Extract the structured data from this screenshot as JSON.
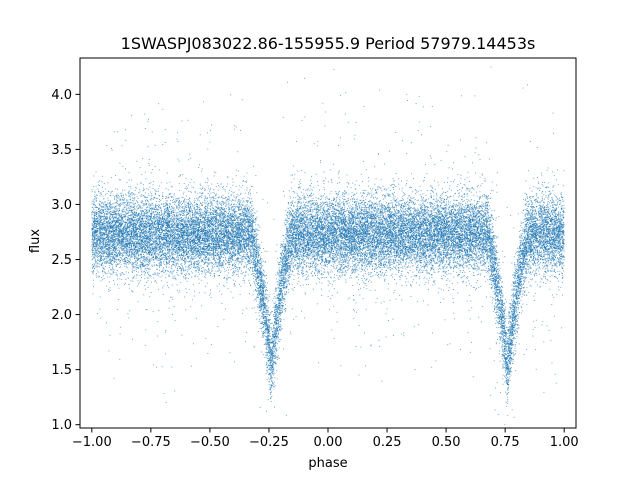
{
  "chart_data": {
    "type": "scatter",
    "title": "1SWASPJ083022.86-155955.9 Period 57979.14453s",
    "xlabel": "phase",
    "ylabel": "flux",
    "xlim": [
      -1.05,
      1.05
    ],
    "ylim": [
      0.97,
      4.33
    ],
    "xticks": [
      -1.0,
      -0.75,
      -0.5,
      -0.25,
      0.0,
      0.25,
      0.5,
      0.75,
      1.0
    ],
    "xtick_labels": [
      "−1.00",
      "−0.75",
      "−0.50",
      "−0.25",
      "0.00",
      "0.25",
      "0.50",
      "0.75",
      "1.00"
    ],
    "yticks": [
      1.0,
      1.5,
      2.0,
      2.5,
      3.0,
      3.5,
      4.0
    ],
    "ytick_labels": [
      "1.0",
      "1.5",
      "2.0",
      "2.5",
      "3.0",
      "3.5",
      "4.0"
    ],
    "grid": false,
    "legend": "none",
    "marker_color": "#1f77b4",
    "series": [
      {
        "x_range": [
          -1.0,
          1.0
        ],
        "baseline_flux": 2.73,
        "baseline_spread": 0.17,
        "eclipses": [
          {
            "center_phase": -0.24,
            "min_flux": 1.55,
            "half_width_phase": 0.085
          },
          {
            "center_phase": 0.76,
            "min_flux": 1.55,
            "half_width_phase": 0.085
          }
        ],
        "approx_point_count": 30000
      }
    ]
  }
}
